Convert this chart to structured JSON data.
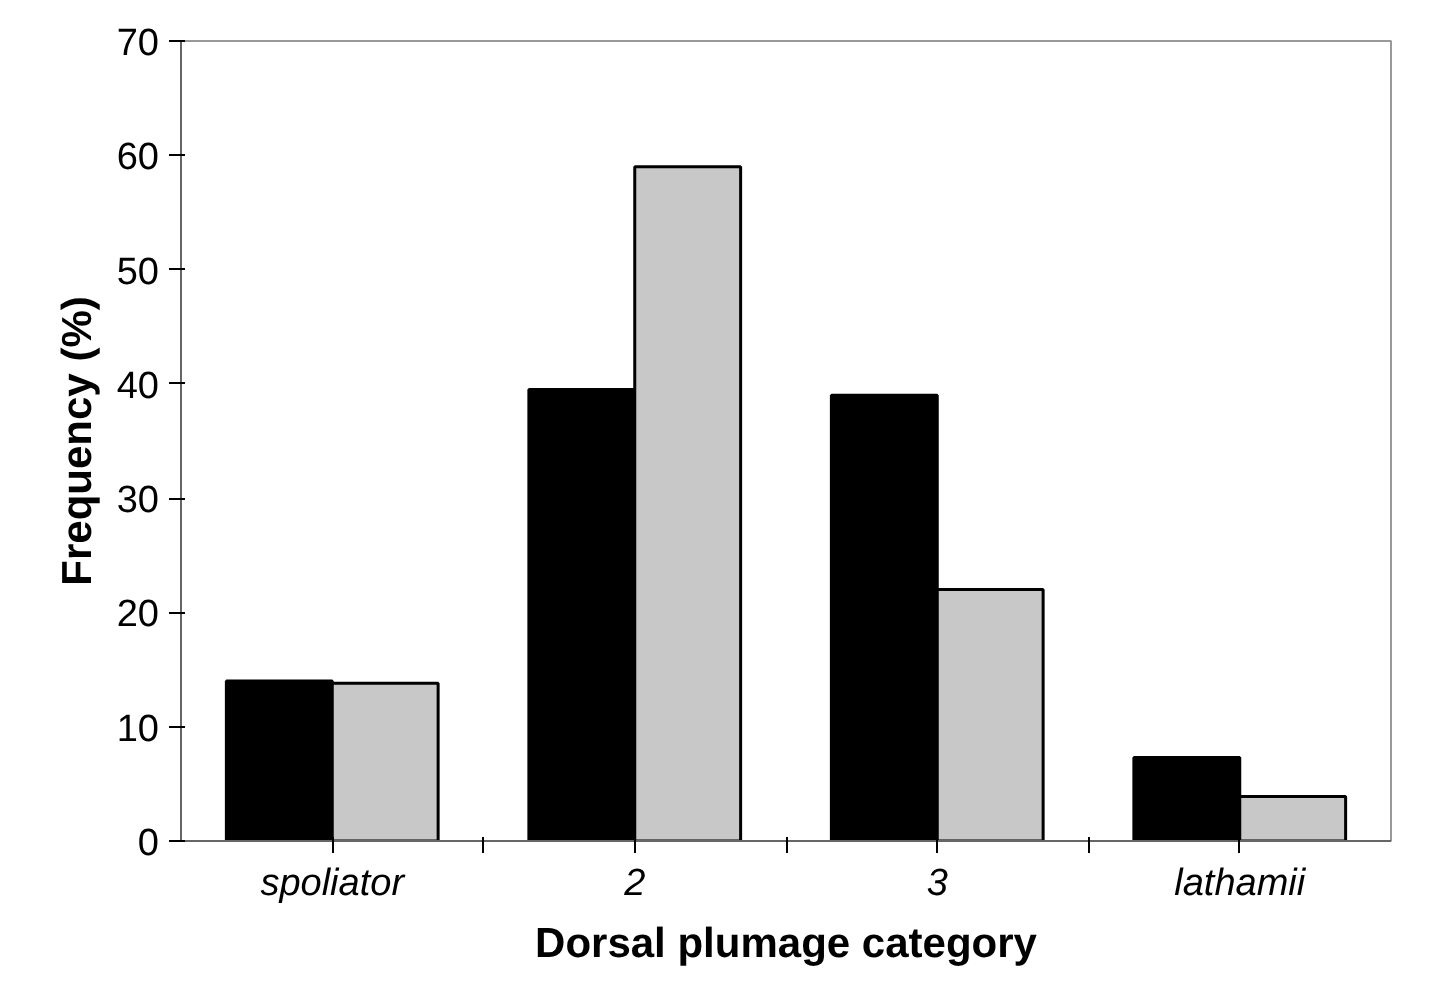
{
  "chart_data": {
    "type": "bar",
    "xlabel": "Dorsal plumage category",
    "ylabel": "Frequency (%)",
    "categories": [
      "spoliator",
      "2",
      "3",
      "lathamii"
    ],
    "series": [
      {
        "color": "#000000",
        "values": [
          14,
          39.5,
          39,
          7.3
        ]
      },
      {
        "color": "#c8c8c8",
        "values": [
          13.8,
          59,
          22,
          3.9
        ]
      }
    ],
    "ylim": [
      0,
      70
    ],
    "yticks": [
      0,
      10,
      20,
      30,
      40,
      50,
      60,
      70
    ],
    "grid": false
  }
}
